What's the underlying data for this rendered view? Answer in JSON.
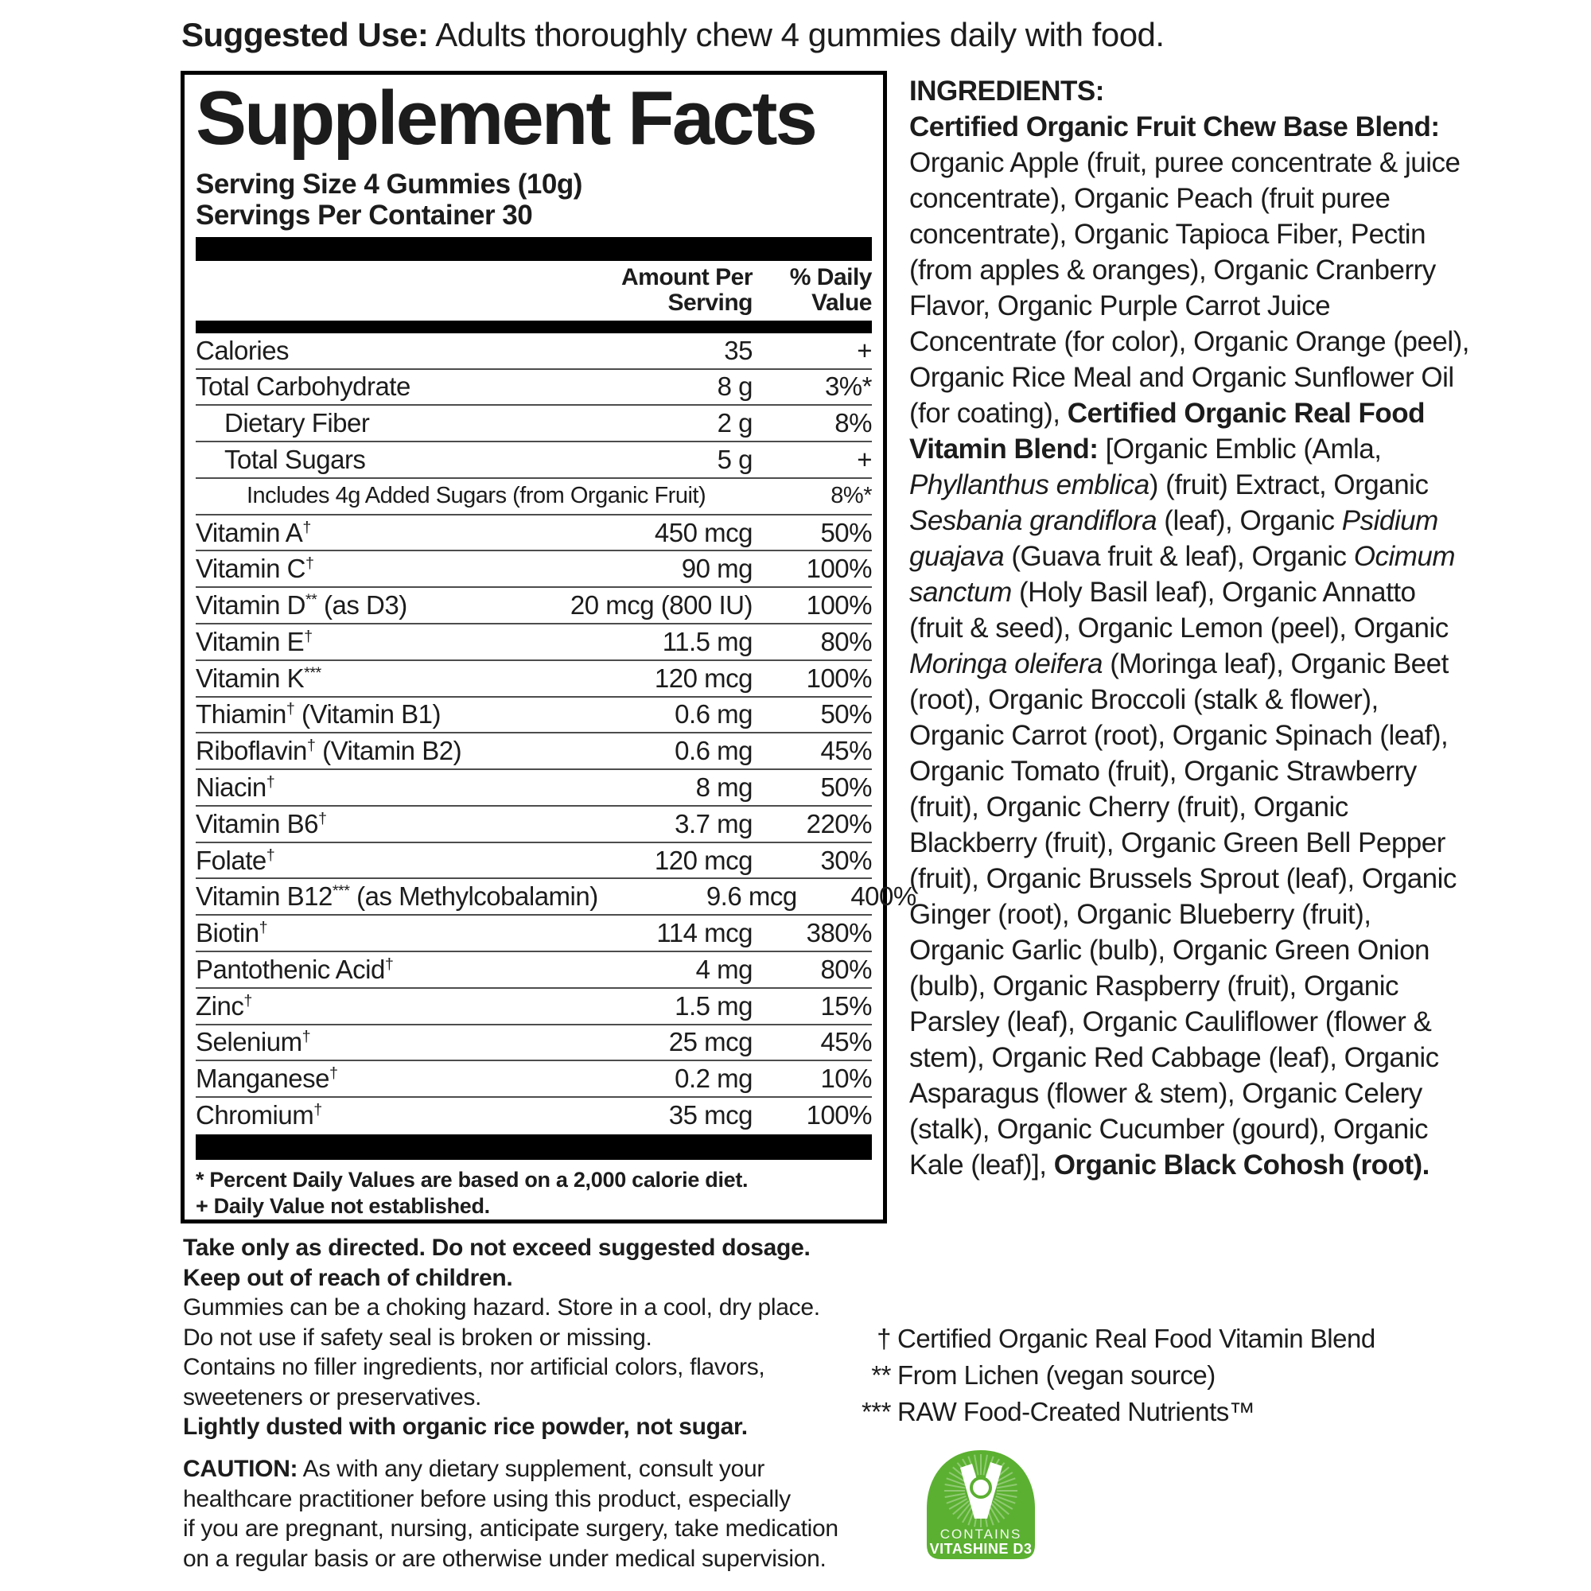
{
  "suggested_use": {
    "label": "Suggested Use:",
    "text": " Adults thoroughly chew 4 gummies daily with food."
  },
  "panel": {
    "title": "Supplement Facts",
    "serving_size": "Serving Size 4 Gummies (10g)",
    "servings_per_container": "Servings Per Container 30",
    "columns": {
      "amount_line1": "Amount Per",
      "amount_line2": "Serving",
      "dv_line1": "% Daily",
      "dv_line2": "Value"
    },
    "rows": [
      {
        "label": "Calories",
        "amount": "35",
        "dv": "+",
        "indent": 0
      },
      {
        "label": "Total Carbohydrate",
        "amount": "8 g",
        "dv": "3%*",
        "indent": 0
      },
      {
        "label": "Dietary Fiber",
        "amount": "2 g",
        "dv": "8%",
        "indent": 1
      },
      {
        "label": "Total Sugars",
        "amount": "5 g",
        "dv": "+",
        "indent": 1
      },
      {
        "label": "Includes 4g Added Sugars (from Organic Fruit)",
        "amount": "",
        "dv": "8%*",
        "indent": 2,
        "small": true
      },
      {
        "label": "Vitamin A",
        "sup": "†",
        "amount": "450 mcg",
        "dv": "50%",
        "indent": 0
      },
      {
        "label": "Vitamin C",
        "sup": "†",
        "amount": "90 mg",
        "dv": "100%",
        "indent": 0
      },
      {
        "label": "Vitamin D",
        "sup": "**",
        "suffix": " (as D3)",
        "amount": "20 mcg (800 IU)",
        "dv": "100%",
        "indent": 0
      },
      {
        "label": "Vitamin E",
        "sup": "†",
        "amount": "11.5 mg",
        "dv": "80%",
        "indent": 0
      },
      {
        "label": "Vitamin K",
        "sup": "***",
        "amount": "120 mcg",
        "dv": "100%",
        "indent": 0
      },
      {
        "label": "Thiamin",
        "sup": "†",
        "suffix": " (Vitamin B1)",
        "amount": "0.6 mg",
        "dv": "50%",
        "indent": 0
      },
      {
        "label": "Riboflavin",
        "sup": "†",
        "suffix": " (Vitamin B2)",
        "amount": "0.6 mg",
        "dv": "45%",
        "indent": 0
      },
      {
        "label": "Niacin",
        "sup": "†",
        "amount": "8 mg",
        "dv": "50%",
        "indent": 0
      },
      {
        "label": "Vitamin B6",
        "sup": "†",
        "amount": "3.7 mg",
        "dv": "220%",
        "indent": 0
      },
      {
        "label": "Folate",
        "sup": "†",
        "amount": "120 mcg",
        "dv": "30%",
        "indent": 0
      },
      {
        "label": "Vitamin B12",
        "sup": "***",
        "suffix": " (as Methylcobalamin)",
        "amount": "9.6 mcg",
        "dv": "400%",
        "indent": 0
      },
      {
        "label": "Biotin",
        "sup": "†",
        "amount": "114 mcg",
        "dv": "380%",
        "indent": 0
      },
      {
        "label": "Pantothenic Acid",
        "sup": "†",
        "amount": "4 mg",
        "dv": "80%",
        "indent": 0
      },
      {
        "label": "Zinc",
        "sup": "†",
        "amount": "1.5 mg",
        "dv": "15%",
        "indent": 0
      },
      {
        "label": "Selenium",
        "sup": "†",
        "amount": "25 mcg",
        "dv": "45%",
        "indent": 0
      },
      {
        "label": "Manganese",
        "sup": "†",
        "amount": "0.2 mg",
        "dv": "10%",
        "indent": 0
      },
      {
        "label": "Chromium",
        "sup": "†",
        "amount": "35 mcg",
        "dv": "100%",
        "indent": 0
      }
    ],
    "footnotes": [
      "* Percent Daily Values are based on a 2,000 calorie diet.",
      "+ Daily Value not established."
    ]
  },
  "directions": {
    "lines": [
      {
        "text": "Take only as directed. Do not exceed suggested dosage.",
        "bold": true
      },
      {
        "text": "Keep out of reach of children.",
        "bold": true
      },
      {
        "text": "Gummies can be a choking hazard. Store in a cool, dry place.",
        "bold": false
      },
      {
        "text": "Do not use if safety seal is broken or missing.",
        "bold": false
      },
      {
        "text": "Contains no filler ingredients, nor artificial colors, flavors,",
        "bold": false
      },
      {
        "text": "sweeteners or preservatives.",
        "bold": false
      },
      {
        "text": "Lightly dusted with organic rice powder, not sugar.",
        "bold": true
      }
    ]
  },
  "caution": {
    "lines": [
      {
        "segments": [
          {
            "t": "CAUTION:",
            "b": true
          },
          {
            "t": " As with any dietary supplement, consult your"
          }
        ]
      },
      {
        "segments": [
          {
            "t": "healthcare practitioner before using this product, especially"
          }
        ]
      },
      {
        "segments": [
          {
            "t": "if you are pregnant, nursing, anticipate surgery, take medication"
          }
        ]
      },
      {
        "segments": [
          {
            "t": "on a regular basis or are otherwise under medical supervision."
          }
        ]
      }
    ]
  },
  "ingredients": {
    "heading": "INGREDIENTS:",
    "segments": [
      {
        "t": "Certified Organic Fruit Chew Base Blend:",
        "b": true
      },
      {
        "t": " Organic Apple (fruit, puree concentrate & juice concentrate), Organic Peach (fruit puree concentrate), Organic Tapioca Fiber, Pectin (from apples & oranges), Organic Cranberry Flavor, Organic Purple Carrot Juice Concentrate (for color), Organic Orange (peel), Organic Rice Meal and Organic Sunflower Oil (for coating), "
      },
      {
        "t": "Certified Organic Real Food Vitamin Blend:",
        "b": true
      },
      {
        "t": " [Organic Emblic (Amla, "
      },
      {
        "t": "Phyllanthus emblica",
        "i": true
      },
      {
        "t": ") (fruit) Extract, Organic "
      },
      {
        "t": "Sesbania grandiflora",
        "i": true
      },
      {
        "t": " (leaf), Organic "
      },
      {
        "t": "Psidium guajava",
        "i": true
      },
      {
        "t": " (Guava fruit & leaf), Organic "
      },
      {
        "t": "Ocimum sanctum",
        "i": true
      },
      {
        "t": " (Holy Basil leaf), Organic Annatto (fruit & seed), Organic Lemon (peel), Organic "
      },
      {
        "t": "Moringa oleifera",
        "i": true
      },
      {
        "t": " (Moringa leaf), Organic Beet (root), Organic Broccoli (stalk & flower), Organic Carrot (root), Organic Spinach (leaf), Organic Tomato (fruit), Organic Strawberry (fruit), Organic Cherry (fruit), Organic Blackberry (fruit), Organic Green Bell Pepper (fruit), Organic Brussels Sprout (leaf), Organic Ginger (root), Organic Blueberry (fruit), Organic Garlic (bulb), Organic Green Onion (bulb), Organic Raspberry (fruit), Organic Parsley (leaf), Organic Cauliflower (flower & stem), Organic Red Cabbage (leaf), Organic Asparagus (flower & stem), Organic Celery (stalk), Organic Cucumber (gourd), Organic Kale (leaf)], "
      },
      {
        "t": "Organic Black Cohosh (root).",
        "b": true
      }
    ]
  },
  "footnote_key": [
    {
      "mark": "†",
      "text": "Certified Organic Real Food Vitamin Blend"
    },
    {
      "mark": "**",
      "text": "From Lichen (vegan source)"
    },
    {
      "mark": "***",
      "text": "RAW Food-Created Nutrients™"
    }
  ],
  "badge": {
    "line1": "CONTAINS",
    "line2": "VITASHINE D3",
    "color": "#5bb031"
  }
}
